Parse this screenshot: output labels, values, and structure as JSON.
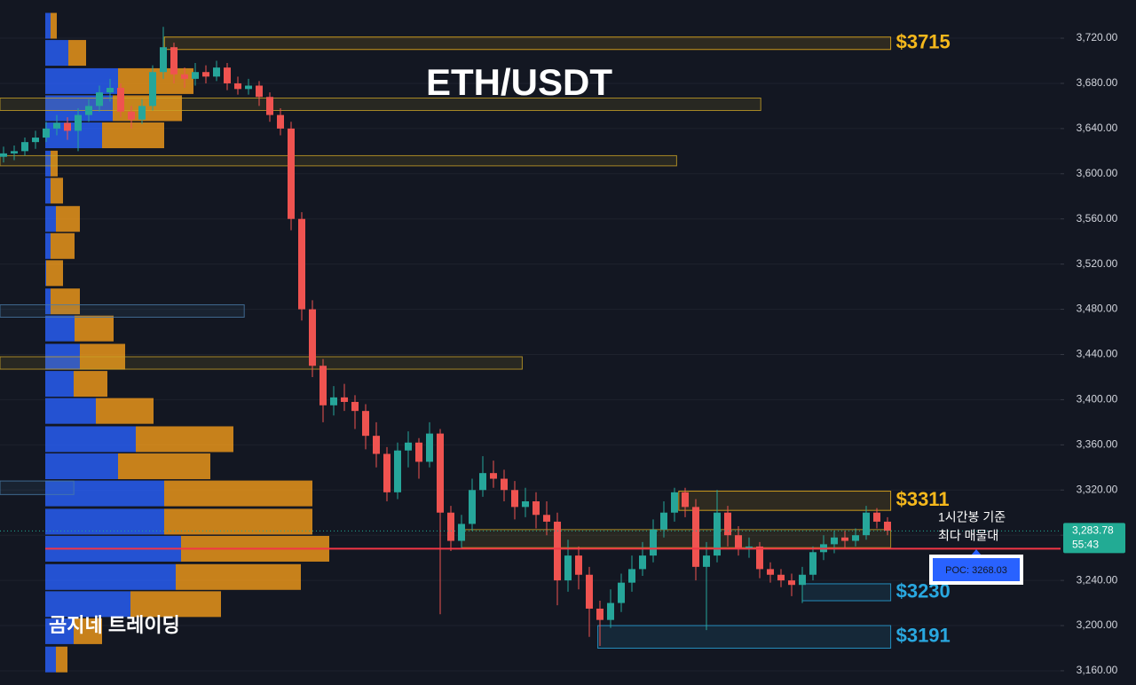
{
  "chart_data": {
    "type": "candlestick",
    "title": "ETH/USDT",
    "watermark": "곰지네 트레이딩",
    "annotation": [
      "1시간봉 기준",
      "최다 매물대"
    ],
    "up_color": "#26a69a",
    "down_color": "#ef5350",
    "grid": true,
    "ylim": [
      3147.4,
      3753.8
    ],
    "yticks": [
      {
        "value": 3160,
        "label": "3,160.00"
      },
      {
        "value": 3200,
        "label": "3,200.00"
      },
      {
        "value": 3240,
        "label": "3,240.00"
      },
      {
        "value": 3280,
        "label": "3,280.00"
      },
      {
        "value": 3320,
        "label": "3,320.00"
      },
      {
        "value": 3360,
        "label": "3,360.00"
      },
      {
        "value": 3400,
        "label": "3,400.00"
      },
      {
        "value": 3440,
        "label": "3,440.00"
      },
      {
        "value": 3480,
        "label": "3,480.00"
      },
      {
        "value": 3520,
        "label": "3,520.00"
      },
      {
        "value": 3560,
        "label": "3,560.00"
      },
      {
        "value": 3600,
        "label": "3,600.00"
      },
      {
        "value": 3640,
        "label": "3,640.00"
      },
      {
        "value": 3680,
        "label": "3,680.00"
      },
      {
        "value": 3720,
        "label": "3,720.00"
      }
    ],
    "ohlc": [
      [
        3615,
        3624,
        3610,
        3618
      ],
      [
        3618,
        3625,
        3612,
        3620
      ],
      [
        3620,
        3632,
        3616,
        3628
      ],
      [
        3628,
        3638,
        3622,
        3632
      ],
      [
        3632,
        3646,
        3628,
        3640
      ],
      [
        3640,
        3652,
        3634,
        3645
      ],
      [
        3645,
        3650,
        3630,
        3638
      ],
      [
        3638,
        3658,
        3620,
        3652
      ],
      [
        3652,
        3666,
        3646,
        3660
      ],
      [
        3660,
        3678,
        3655,
        3672
      ],
      [
        3672,
        3684,
        3664,
        3676
      ],
      [
        3676,
        3680,
        3650,
        3655
      ],
      [
        3655,
        3660,
        3640,
        3648
      ],
      [
        3648,
        3666,
        3644,
        3660
      ],
      [
        3660,
        3696,
        3656,
        3690
      ],
      [
        3690,
        3730,
        3684,
        3712
      ],
      [
        3712,
        3716,
        3680,
        3688
      ],
      [
        3688,
        3694,
        3676,
        3684
      ],
      [
        3684,
        3698,
        3678,
        3690
      ],
      [
        3690,
        3696,
        3680,
        3686
      ],
      [
        3686,
        3700,
        3682,
        3694
      ],
      [
        3694,
        3698,
        3674,
        3680
      ],
      [
        3680,
        3686,
        3670,
        3675
      ],
      [
        3675,
        3684,
        3670,
        3678
      ],
      [
        3678,
        3682,
        3660,
        3668
      ],
      [
        3668,
        3672,
        3646,
        3652
      ],
      [
        3652,
        3658,
        3634,
        3640
      ],
      [
        3640,
        3646,
        3550,
        3560
      ],
      [
        3560,
        3566,
        3470,
        3480
      ],
      [
        3480,
        3488,
        3420,
        3430
      ],
      [
        3430,
        3436,
        3380,
        3395
      ],
      [
        3395,
        3412,
        3386,
        3402
      ],
      [
        3402,
        3414,
        3390,
        3398
      ],
      [
        3398,
        3404,
        3374,
        3390
      ],
      [
        3390,
        3396,
        3356,
        3368
      ],
      [
        3368,
        3380,
        3340,
        3352
      ],
      [
        3352,
        3358,
        3310,
        3318
      ],
      [
        3318,
        3362,
        3312,
        3355
      ],
      [
        3355,
        3372,
        3340,
        3362
      ],
      [
        3362,
        3366,
        3330,
        3345
      ],
      [
        3345,
        3380,
        3340,
        3370
      ],
      [
        3370,
        3374,
        3210,
        3300
      ],
      [
        3300,
        3306,
        3266,
        3275
      ],
      [
        3275,
        3298,
        3268,
        3290
      ],
      [
        3290,
        3330,
        3284,
        3320
      ],
      [
        3320,
        3350,
        3314,
        3335
      ],
      [
        3335,
        3346,
        3322,
        3330
      ],
      [
        3330,
        3338,
        3310,
        3320
      ],
      [
        3320,
        3328,
        3294,
        3305
      ],
      [
        3305,
        3322,
        3296,
        3310
      ],
      [
        3310,
        3318,
        3286,
        3298
      ],
      [
        3298,
        3310,
        3280,
        3292
      ],
      [
        3292,
        3300,
        3218,
        3240
      ],
      [
        3240,
        3276,
        3230,
        3262
      ],
      [
        3262,
        3270,
        3232,
        3245
      ],
      [
        3245,
        3252,
        3190,
        3215
      ],
      [
        3215,
        3222,
        3182,
        3205
      ],
      [
        3205,
        3232,
        3198,
        3220
      ],
      [
        3220,
        3246,
        3212,
        3238
      ],
      [
        3238,
        3262,
        3230,
        3250
      ],
      [
        3250,
        3274,
        3244,
        3262
      ],
      [
        3262,
        3294,
        3256,
        3285
      ],
      [
        3285,
        3310,
        3278,
        3300
      ],
      [
        3300,
        3322,
        3292,
        3318
      ],
      [
        3318,
        3322,
        3296,
        3305
      ],
      [
        3305,
        3312,
        3240,
        3252
      ],
      [
        3252,
        3274,
        3196,
        3262
      ],
      [
        3262,
        3320,
        3256,
        3300
      ],
      [
        3300,
        3306,
        3270,
        3280
      ],
      [
        3280,
        3288,
        3262,
        3268
      ],
      [
        3268,
        3278,
        3260,
        3270
      ],
      [
        3270,
        3274,
        3242,
        3250
      ],
      [
        3250,
        3256,
        3238,
        3245
      ],
      [
        3245,
        3250,
        3234,
        3240
      ],
      [
        3240,
        3246,
        3226,
        3236
      ],
      [
        3236,
        3252,
        3220,
        3245
      ],
      [
        3245,
        3270,
        3240,
        3265
      ],
      [
        3265,
        3280,
        3258,
        3272
      ],
      [
        3272,
        3284,
        3264,
        3278
      ],
      [
        3278,
        3284,
        3268,
        3275
      ],
      [
        3275,
        3286,
        3270,
        3280
      ],
      [
        3280,
        3306,
        3276,
        3300
      ],
      [
        3300,
        3304,
        3286,
        3292
      ],
      [
        3292,
        3296,
        3280,
        3284
      ]
    ],
    "volume_profile": {
      "buy_color": "#2962ff",
      "sell_color": "#f59c1a",
      "levels": [
        3170,
        3195,
        3219,
        3243,
        3268,
        3292,
        3317,
        3341,
        3365,
        3390,
        3414,
        3438,
        3463,
        3487,
        3512,
        3536,
        3560,
        3585,
        3609,
        3634,
        3658,
        3682,
        3707,
        3731
      ],
      "buy": [
        12,
        32,
        96,
        147,
        153,
        134,
        134,
        82,
        102,
        57,
        32,
        39,
        33,
        6,
        1,
        6,
        12,
        6,
        6,
        64,
        76,
        82,
        26,
        6
      ],
      "sell": [
        13,
        32,
        102,
        141,
        167,
        167,
        167,
        104,
        110,
        65,
        38,
        51,
        44,
        33,
        19,
        27,
        27,
        14,
        8,
        70,
        78,
        85,
        20,
        7
      ]
    },
    "zones": [
      {
        "top": 3721,
        "bottom": 3710,
        "x0": 15.1,
        "x1": 83.3,
        "color": "#f5b81c",
        "label": "$3715"
      },
      {
        "top": 3667,
        "bottom": 3656,
        "x0": -0.5,
        "x1": 71.1,
        "color": "#c9a227"
      },
      {
        "top": 3616,
        "bottom": 3607,
        "x0": -0.5,
        "x1": 63.2,
        "color": "#c9a227"
      },
      {
        "top": 3484,
        "bottom": 3473,
        "x0": -0.5,
        "x1": 22.6,
        "color": "#4a7aa8"
      },
      {
        "top": 3438,
        "bottom": 3427,
        "x0": -0.5,
        "x1": 48.7,
        "color": "#c9a227"
      },
      {
        "top": 3328,
        "bottom": 3316,
        "x0": -0.5,
        "x1": 6.6,
        "color": "#4a7aa8"
      },
      {
        "top": 3319,
        "bottom": 3302,
        "x0": 63.4,
        "x1": 83.3,
        "color": "#f5b81c",
        "label": "$3311"
      },
      {
        "top": 3285,
        "bottom": 3269,
        "x0": 43,
        "x1": 83.3,
        "color": "#c9a227"
      },
      {
        "top": 3237,
        "bottom": 3222,
        "x0": 75,
        "x1": 83.3,
        "color": "#29a8e0",
        "label": "$3230"
      },
      {
        "top": 3200,
        "bottom": 3180,
        "x0": 55.8,
        "x1": 83.3,
        "color": "#29a8e0",
        "label": "$3191"
      }
    ],
    "poc": {
      "value": 3268.03,
      "label": "POC: 3268.03",
      "color": "#f23645"
    },
    "last_price": {
      "value": 3283.78,
      "label": "3,283.78",
      "countdown": "55:43",
      "color": "#22ab94"
    }
  }
}
